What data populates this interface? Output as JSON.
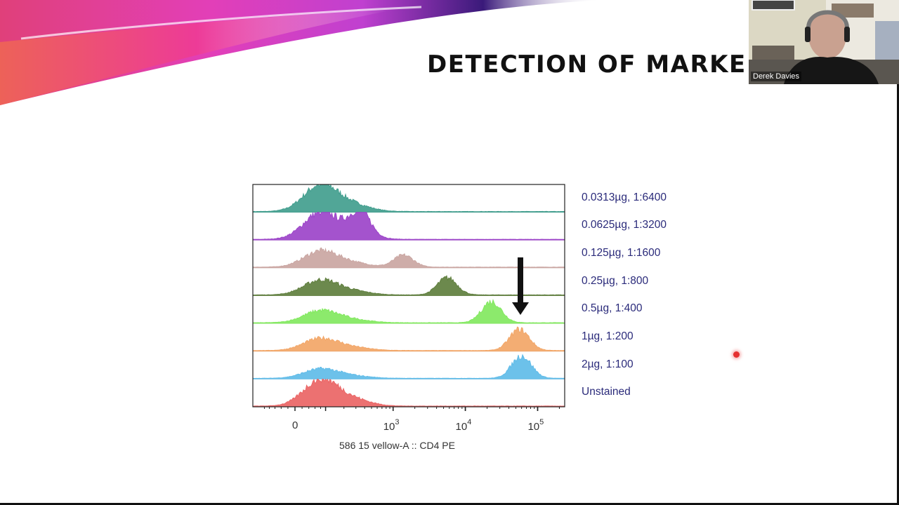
{
  "slide": {
    "title": "DETECTION OF MARKE",
    "accent_colors": [
      "#e23fb0",
      "#f04a7a",
      "#3a1a8a"
    ]
  },
  "video": {
    "participant_name": "Derek Davies"
  },
  "chart_data": {
    "type": "histogram-overlay",
    "xlabel": "586 15 vellow-A :: CD4 PE",
    "x_scale": "biexponential",
    "x_ticks": [
      {
        "value": 0,
        "base": "0",
        "exp": ""
      },
      {
        "value": 1000,
        "base": "10",
        "exp": "3"
      },
      {
        "value": 10000,
        "base": "10",
        "exp": "4"
      },
      {
        "value": 100000,
        "base": "10",
        "exp": "5"
      }
    ],
    "xlim": [
      -150,
      200000
    ],
    "series": [
      {
        "name": "0.0313µg, 1:6400",
        "color": "#3e9c8c",
        "peaks": [
          {
            "center": 80,
            "height": 1.0
          }
        ]
      },
      {
        "name": "0.0625µg, 1:3200",
        "color": "#9a40c8",
        "peaks": [
          {
            "center": 80,
            "height": 1.0
          },
          {
            "center": 350,
            "height": 0.85
          }
        ]
      },
      {
        "name": "0.125µg, 1:1600",
        "color": "#c9a4a0",
        "peaks": [
          {
            "center": 80,
            "height": 0.6
          },
          {
            "center": 1400,
            "height": 0.45
          }
        ]
      },
      {
        "name": "0.25µg, 1:800",
        "color": "#5c7c3a",
        "peaks": [
          {
            "center": 80,
            "height": 0.55
          },
          {
            "center": 5600,
            "height": 0.65
          }
        ]
      },
      {
        "name": "0.5µg, 1:400",
        "color": "#80e85c",
        "peaks": [
          {
            "center": 80,
            "height": 0.45
          },
          {
            "center": 23000,
            "height": 0.8
          }
        ]
      },
      {
        "name": "1µg, 1:200",
        "color": "#f2a464",
        "peaks": [
          {
            "center": 80,
            "height": 0.45
          },
          {
            "center": 56000,
            "height": 0.8
          }
        ]
      },
      {
        "name": "2µg, 1:100",
        "color": "#5cbae8",
        "peaks": [
          {
            "center": 80,
            "height": 0.35
          },
          {
            "center": 60000,
            "height": 0.85
          }
        ]
      },
      {
        "name": "Unstained",
        "color": "#ea6262",
        "peaks": [
          {
            "center": 80,
            "height": 1.0
          }
        ]
      }
    ],
    "annotation": {
      "type": "arrow-down",
      "at_value": 56000,
      "between": [
        "0.125µg, 1:1600",
        "1µg, 1:200"
      ]
    }
  }
}
